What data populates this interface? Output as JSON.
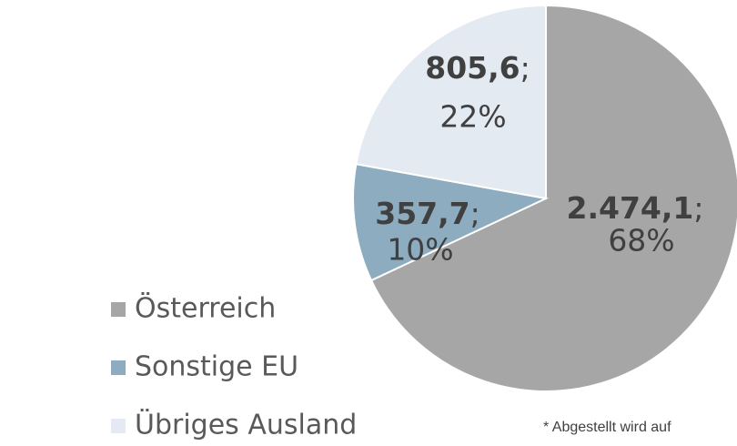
{
  "chart_data": {
    "type": "pie",
    "categories": [
      "Österreich",
      "Sonstige EU",
      "Übriges Ausland"
    ],
    "values": [
      2474.1,
      357.7,
      805.6
    ],
    "value_labels": [
      "2.474,1",
      "357,7",
      "805,6"
    ],
    "percents": [
      68,
      10,
      22
    ],
    "percent_labels": [
      "68%",
      "10%",
      "22%"
    ],
    "separator": ";",
    "colors": [
      "#a6a6a6",
      "#8dacbf",
      "#e3eaf2"
    ],
    "legend": "left",
    "note": "* Abgestellt wird auf"
  }
}
